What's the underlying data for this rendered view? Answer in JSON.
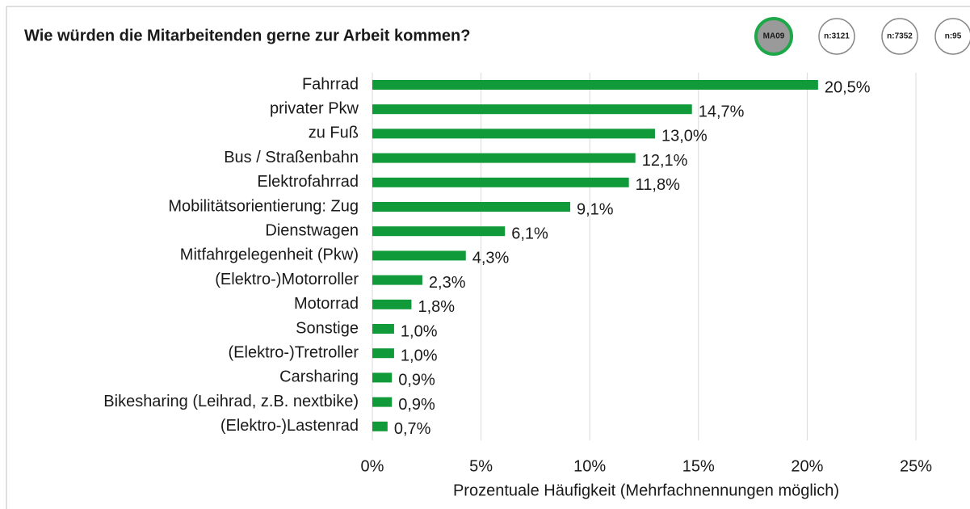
{
  "chart_data": {
    "type": "barh",
    "title": "Wie würden die Mitarbeitenden gerne zur Arbeit kommen?",
    "xlabel": "Prozentuale Häufigkeit (Mehrfachnennungen möglich)",
    "categories": [
      "Fahrrad",
      "privater Pkw",
      "zu Fuß",
      "Bus / Straßenbahn",
      "Elektrofahrrad",
      "Mobilitätsorientierung: Zug",
      "Dienstwagen",
      "Mitfahrgelegenheit (Pkw)",
      "(Elektro-)Motorroller",
      "Motorrad",
      "Sonstige",
      "(Elektro-)Tretroller",
      "Carsharing",
      "Bikesharing (Leihrad, z.B. nextbike)",
      "(Elektro-)Lastenrad"
    ],
    "values": [
      20.5,
      14.7,
      13.0,
      12.1,
      11.8,
      9.1,
      6.1,
      4.3,
      2.3,
      1.8,
      1.0,
      1.0,
      0.9,
      0.9,
      0.7
    ],
    "value_labels": [
      "20,5%",
      "14,7%",
      "13,0%",
      "12,1%",
      "11,8%",
      "9,1%",
      "6,1%",
      "4,3%",
      "2,3%",
      "1,8%",
      "1,0%",
      "1,0%",
      "0,9%",
      "0,9%",
      "0,7%"
    ],
    "color": "#109a3a",
    "xlim": [
      0,
      25
    ],
    "xticks": [
      {
        "value": 0,
        "label": "0%"
      },
      {
        "value": 5,
        "label": "5%"
      },
      {
        "value": 10,
        "label": "10%"
      },
      {
        "value": 15,
        "label": "15%"
      },
      {
        "value": 20,
        "label": "20%"
      },
      {
        "value": 25,
        "label": "25%"
      }
    ],
    "grid": true
  },
  "badges": [
    "MA09",
    "n:3121",
    "n:7352",
    "n:95"
  ]
}
